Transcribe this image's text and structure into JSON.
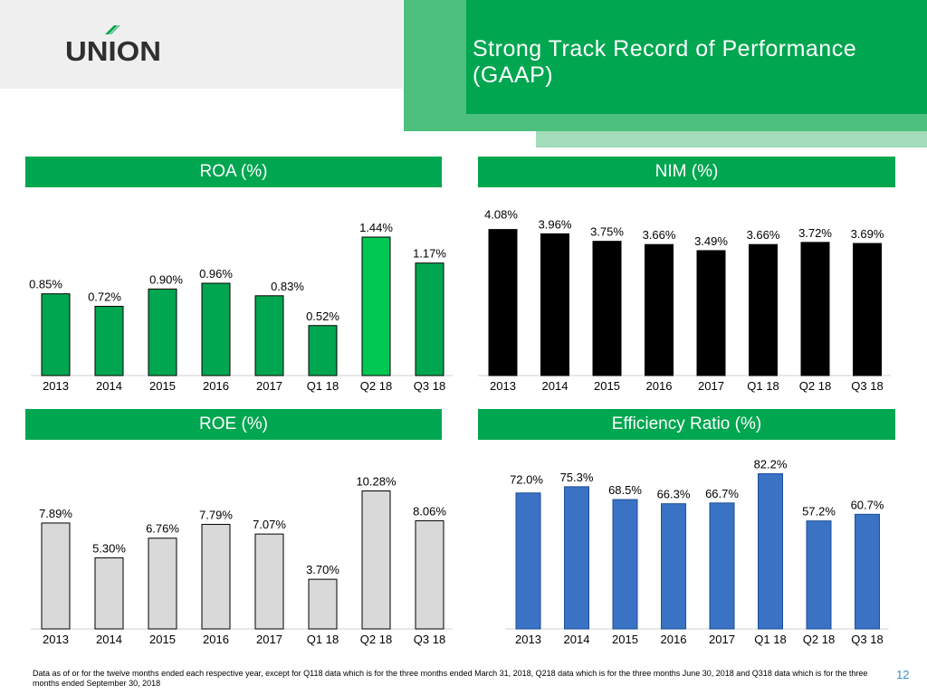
{
  "logo": {
    "text": "UNION"
  },
  "title": "Strong Track Record of Performance (GAAP)",
  "colors": {
    "brand_green": "#00a650",
    "roa_bar": "#00a650",
    "roa_highlight": "#00c853",
    "nim_bar": "#000000",
    "roe_bar": "#d9d9d9",
    "eff_bar": "#3a72c4"
  },
  "chart_data": [
    {
      "id": "roa",
      "type": "bar",
      "title": "ROA (%)",
      "categories": [
        "2013",
        "2014",
        "2015",
        "2016",
        "2017",
        "Q1 18",
        "Q2 18",
        "Q3 18"
      ],
      "values": [
        0.85,
        0.72,
        0.9,
        0.96,
        0.83,
        0.52,
        1.44,
        1.17
      ],
      "labels": [
        "0.85%",
        "0.72%",
        "0.90%",
        "0.96%",
        "0.83%",
        "0.52%",
        "1.44%",
        "1.17%"
      ],
      "highlight_index": 6,
      "ylim": [
        0,
        1.6
      ],
      "xlabel": "",
      "ylabel": ""
    },
    {
      "id": "nim",
      "type": "bar",
      "title": "NIM (%)",
      "categories": [
        "2013",
        "2014",
        "2015",
        "2016",
        "2017",
        "Q1 18",
        "Q2 18",
        "Q3 18"
      ],
      "values": [
        4.08,
        3.96,
        3.75,
        3.66,
        3.49,
        3.66,
        3.72,
        3.69
      ],
      "labels": [
        "4.08%",
        "3.96%",
        "3.75%",
        "3.66%",
        "3.49%",
        "3.66%",
        "3.72%",
        "3.69%"
      ],
      "ylim": [
        0,
        4.5
      ],
      "xlabel": "",
      "ylabel": ""
    },
    {
      "id": "roe",
      "type": "bar",
      "title": "ROE (%)",
      "categories": [
        "2013",
        "2014",
        "2015",
        "2016",
        "2017",
        "Q1 18",
        "Q2 18",
        "Q3 18"
      ],
      "values": [
        7.89,
        5.3,
        6.76,
        7.79,
        7.07,
        3.7,
        10.28,
        8.06
      ],
      "labels": [
        "7.89%",
        "5.30%",
        "6.76%",
        "7.79%",
        "7.07%",
        "3.70%",
        "10.28%",
        "8.06%"
      ],
      "ylim": [
        0,
        12
      ],
      "xlabel": "",
      "ylabel": ""
    },
    {
      "id": "eff",
      "type": "bar",
      "title": "Efficiency Ratio (%)",
      "categories": [
        "2013",
        "2014",
        "2015",
        "2016",
        "2017",
        "Q1 18",
        "Q2 18",
        "Q3 18"
      ],
      "values": [
        72.0,
        75.3,
        68.5,
        66.3,
        66.7,
        82.2,
        57.2,
        60.7
      ],
      "labels": [
        "72.0%",
        "75.3%",
        "68.5%",
        "66.3%",
        "66.7%",
        "82.2%",
        "57.2%",
        "60.7%"
      ],
      "ylim": [
        0,
        92
      ],
      "xlabel": "",
      "ylabel": ""
    }
  ],
  "footnote": "Data as of or for the twelve months ended each respective year, except for Q118 data which is for the three months ended March 31, 2018,  Q218 data which is for the three months June 30, 2018 and Q318 data which is for the three months ended September 30, 2018",
  "page_number": "12"
}
